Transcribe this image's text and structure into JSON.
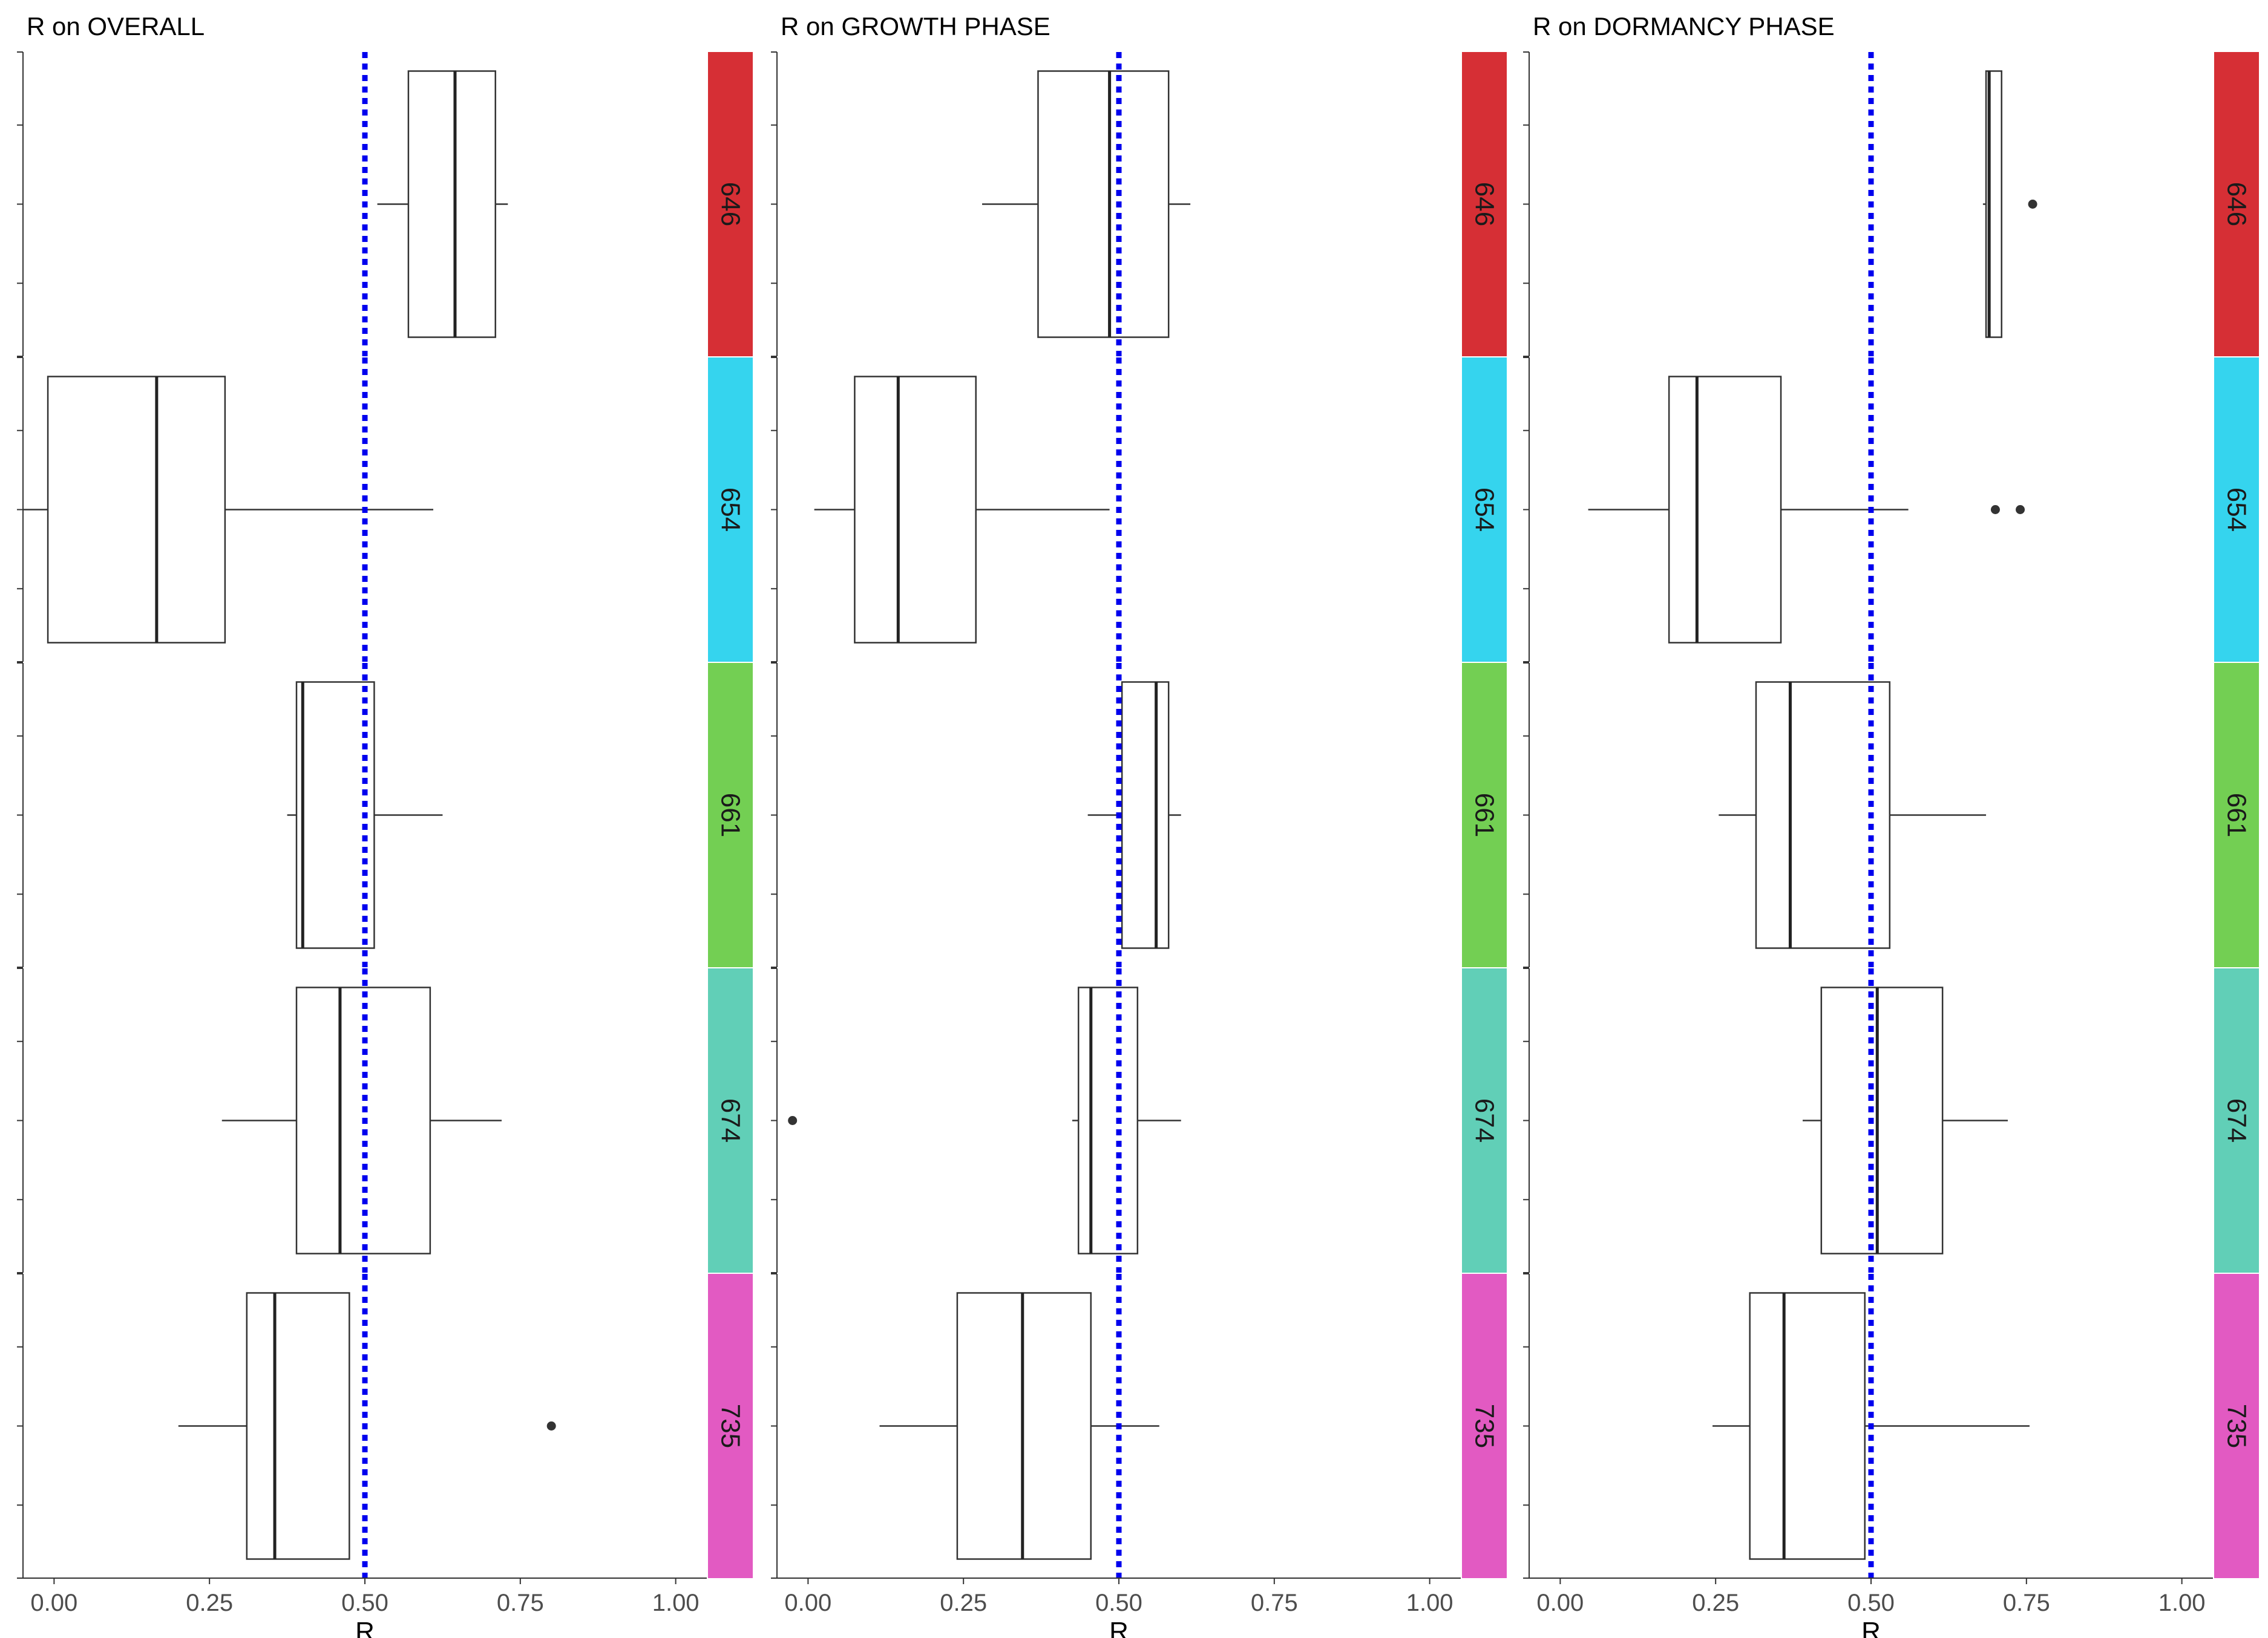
{
  "chart_data": [
    {
      "type": "boxplot",
      "title": "R on OVERALL",
      "xlabel": "R",
      "xlim": [
        -0.05,
        1.05
      ],
      "x_ticks": [
        0,
        0.25,
        0.5,
        0.75,
        1
      ],
      "x_tick_labels": [
        "0.00",
        "0.25",
        "0.50",
        "0.75",
        "1.00"
      ],
      "reference_line": 0.5,
      "groups": [
        {
          "label": "646",
          "color": "#d62f35",
          "whisker_low": 0.52,
          "q1": 0.57,
          "median": 0.645,
          "q3": 0.71,
          "whisker_high": 0.73,
          "outliers": []
        },
        {
          "label": "654",
          "color": "#35d4ee",
          "whisker_low": -0.05,
          "q1": -0.01,
          "median": 0.165,
          "q3": 0.275,
          "whisker_high": 0.61,
          "outliers": []
        },
        {
          "label": "661",
          "color": "#73cf53",
          "whisker_low": 0.375,
          "q1": 0.39,
          "median": 0.4,
          "q3": 0.515,
          "whisker_high": 0.625,
          "outliers": []
        },
        {
          "label": "674",
          "color": "#61cfb7",
          "whisker_low": 0.27,
          "q1": 0.39,
          "median": 0.46,
          "q3": 0.605,
          "whisker_high": 0.72,
          "outliers": []
        },
        {
          "label": "735",
          "color": "#e25ac2",
          "whisker_low": 0.2,
          "q1": 0.31,
          "median": 0.355,
          "q3": 0.475,
          "whisker_high": 0.475,
          "outliers": [
            0.8
          ]
        }
      ]
    },
    {
      "type": "boxplot",
      "title": "R on GROWTH PHASE",
      "xlabel": "R",
      "xlim": [
        -0.05,
        1.05
      ],
      "x_ticks": [
        0,
        0.25,
        0.5,
        0.75,
        1
      ],
      "x_tick_labels": [
        "0.00",
        "0.25",
        "0.50",
        "0.75",
        "1.00"
      ],
      "reference_line": 0.5,
      "groups": [
        {
          "label": "646",
          "color": "#d62f35",
          "whisker_low": 0.28,
          "q1": 0.37,
          "median": 0.485,
          "q3": 0.58,
          "whisker_high": 0.615,
          "outliers": []
        },
        {
          "label": "654",
          "color": "#35d4ee",
          "whisker_low": 0.01,
          "q1": 0.075,
          "median": 0.145,
          "q3": 0.27,
          "whisker_high": 0.485,
          "outliers": []
        },
        {
          "label": "661",
          "color": "#73cf53",
          "whisker_low": 0.45,
          "q1": 0.505,
          "median": 0.56,
          "q3": 0.58,
          "whisker_high": 0.6,
          "outliers": []
        },
        {
          "label": "674",
          "color": "#61cfb7",
          "whisker_low": 0.425,
          "q1": 0.435,
          "median": 0.455,
          "q3": 0.53,
          "whisker_high": 0.6,
          "outliers": [
            -0.025
          ]
        },
        {
          "label": "735",
          "color": "#e25ac2",
          "whisker_low": 0.115,
          "q1": 0.24,
          "median": 0.345,
          "q3": 0.455,
          "whisker_high": 0.565,
          "outliers": []
        }
      ]
    },
    {
      "type": "boxplot",
      "title": "R on DORMANCY PHASE",
      "xlabel": "R",
      "xlim": [
        -0.05,
        1.05
      ],
      "x_ticks": [
        0,
        0.25,
        0.5,
        0.75,
        1
      ],
      "x_tick_labels": [
        "0.00",
        "0.25",
        "0.50",
        "0.75",
        "1.00"
      ],
      "reference_line": 0.5,
      "groups": [
        {
          "label": "646",
          "color": "#d62f35",
          "whisker_low": 0.68,
          "q1": 0.685,
          "median": 0.69,
          "q3": 0.71,
          "whisker_high": 0.71,
          "outliers": [
            0.76
          ]
        },
        {
          "label": "654",
          "color": "#35d4ee",
          "whisker_low": 0.045,
          "q1": 0.175,
          "median": 0.22,
          "q3": 0.355,
          "whisker_high": 0.56,
          "outliers": [
            0.7,
            0.74
          ]
        },
        {
          "label": "661",
          "color": "#73cf53",
          "whisker_low": 0.255,
          "q1": 0.315,
          "median": 0.37,
          "q3": 0.53,
          "whisker_high": 0.685,
          "outliers": []
        },
        {
          "label": "674",
          "color": "#61cfb7",
          "whisker_low": 0.39,
          "q1": 0.42,
          "median": 0.51,
          "q3": 0.615,
          "whisker_high": 0.72,
          "outliers": []
        },
        {
          "label": "735",
          "color": "#e25ac2",
          "whisker_low": 0.245,
          "q1": 0.305,
          "median": 0.36,
          "q3": 0.49,
          "whisker_high": 0.755,
          "outliers": []
        }
      ]
    }
  ]
}
